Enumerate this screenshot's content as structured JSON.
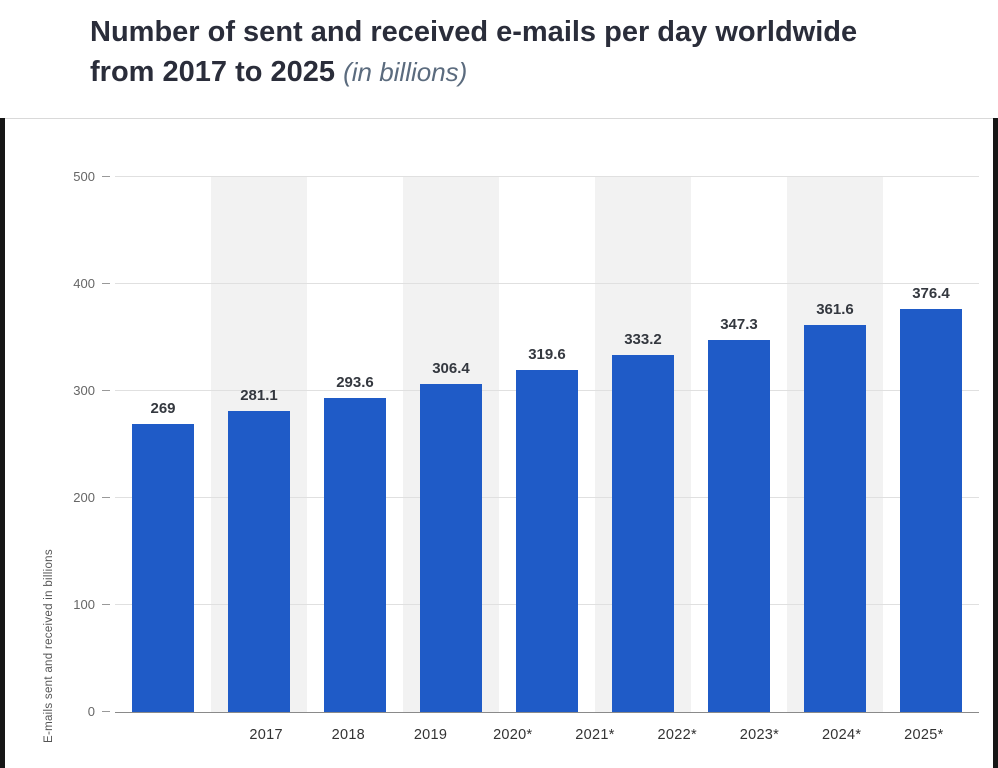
{
  "header": {
    "title": "Number of sent and received e-mails per day worldwide from 2017 to 2025",
    "subtitle": "(in billions)"
  },
  "chart_data": {
    "type": "bar",
    "title": "Number of sent and received e-mails per day worldwide from 2017 to 2025",
    "subtitle": "(in billions)",
    "categories": [
      "2017",
      "2018",
      "2019",
      "2020*",
      "2021*",
      "2022*",
      "2023*",
      "2024*",
      "2025*"
    ],
    "values": [
      269,
      281.1,
      293.6,
      306.4,
      319.6,
      333.2,
      347.3,
      361.6,
      376.4
    ],
    "value_labels": [
      "269",
      "281.1",
      "293.6",
      "306.4",
      "319.6",
      "333.2",
      "347.3",
      "361.6",
      "376.4"
    ],
    "xlabel": "",
    "ylabel": "E-mails sent and received in billions",
    "ylim": [
      0,
      500
    ],
    "yticks": [
      0,
      100,
      200,
      300,
      400,
      500
    ],
    "grid": "horizontal-lines",
    "legend": "none",
    "striped_columns": [
      1,
      3,
      5,
      7
    ],
    "colors": {
      "bar": "#1f5bc7",
      "stripe": "#f2f2f2",
      "gridline": "#e0e0e0",
      "axis_line": "#8a8a8a",
      "tick_text": "#666666",
      "value_label": "#34383f",
      "title_text": "#2a2d3a",
      "subtitle_text": "#5b6b7e"
    }
  }
}
